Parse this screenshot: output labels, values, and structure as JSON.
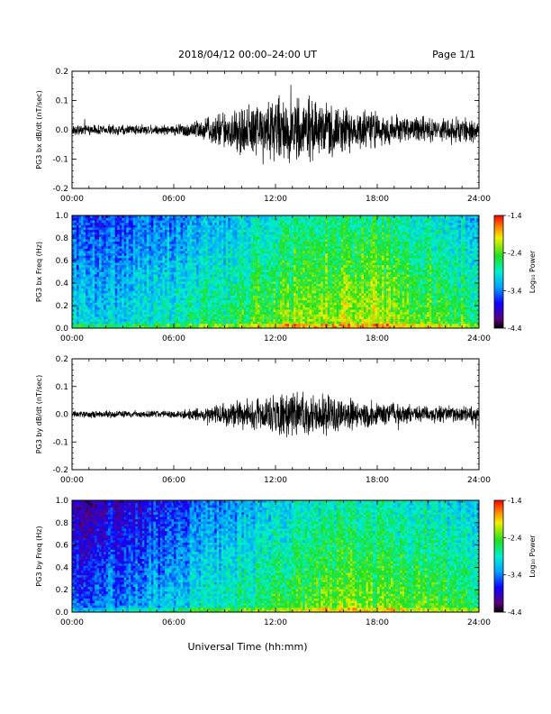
{
  "header": {
    "title": "2018/04/12   00:00–24:00 UT",
    "page": "Page 1/1"
  },
  "chart_data": [
    {
      "type": "line",
      "ylabel": "PG3 bx dB/dt (nT/sec)",
      "xlim": [
        0,
        24
      ],
      "ylim": [
        -0.2,
        0.2
      ],
      "xticks": [
        "00:00",
        "06:00",
        "12:00",
        "18:00",
        "24:00"
      ],
      "yticks": [
        "-0.2",
        "-0.1",
        "0.0",
        "0.1",
        "0.2"
      ],
      "amplitude_envelope": {
        "x_hours": [
          0,
          3,
          6,
          8,
          10,
          12,
          14,
          16,
          18,
          20,
          24
        ],
        "y_halfwidth": [
          0.02,
          0.02,
          0.02,
          0.05,
          0.1,
          0.13,
          0.12,
          0.09,
          0.07,
          0.05,
          0.045
        ]
      },
      "color": "#000000"
    },
    {
      "type": "heatmap",
      "ylabel": "PG3 bx Freq (Hz)",
      "xlim": [
        0,
        24
      ],
      "ylim": [
        0,
        1
      ],
      "xticks": [
        "00:00",
        "06:00",
        "12:00",
        "18:00",
        "24:00"
      ],
      "yticks": [
        "0.0",
        "0.2",
        "0.4",
        "0.6",
        "0.8",
        "1.0"
      ],
      "colorbar": {
        "label": "Log₁₀ Power",
        "min": -4.4,
        "max": -1.4,
        "ticks": [
          "-1.4",
          "-2.4",
          "-3.4",
          "-4.4"
        ]
      },
      "power_profile": {
        "x_hours": [
          0,
          3,
          6,
          9,
          12,
          15,
          18,
          21,
          24
        ],
        "log10_power_mid": [
          -3.3,
          -3.3,
          -3.1,
          -2.9,
          -2.6,
          -2.4,
          -2.4,
          -2.6,
          -2.9
        ]
      }
    },
    {
      "type": "line",
      "ylabel": "PG3 by dB/dt (nT/sec)",
      "xlim": [
        0,
        24
      ],
      "ylim": [
        -0.2,
        0.2
      ],
      "xticks": [
        "00:00",
        "06:00",
        "12:00",
        "18:00",
        "24:00"
      ],
      "yticks": [
        "-0.2",
        "-0.1",
        "0.0",
        "0.1",
        "0.2"
      ],
      "amplitude_envelope": {
        "x_hours": [
          0,
          3,
          6,
          8,
          10,
          12,
          14,
          16,
          18,
          20,
          24
        ],
        "y_halfwidth": [
          0.015,
          0.015,
          0.015,
          0.03,
          0.06,
          0.08,
          0.09,
          0.07,
          0.05,
          0.04,
          0.03
        ]
      },
      "color": "#000000"
    },
    {
      "type": "heatmap",
      "ylabel": "PG3 by Freq (Hz)",
      "xlim": [
        0,
        24
      ],
      "ylim": [
        0,
        1
      ],
      "xticks": [
        "00:00",
        "06:00",
        "12:00",
        "18:00",
        "24:00"
      ],
      "yticks": [
        "0.0",
        "0.2",
        "0.4",
        "0.6",
        "0.8",
        "1.0"
      ],
      "colorbar": {
        "label": "Log₁₀ Power",
        "min": -4.4,
        "max": -1.4,
        "ticks": [
          "-1.4",
          "-2.4",
          "-3.4",
          "-4.4"
        ]
      },
      "power_profile": {
        "x_hours": [
          0,
          3,
          6,
          9,
          12,
          15,
          18,
          21,
          24
        ],
        "log10_power_mid": [
          -3.7,
          -3.6,
          -3.4,
          -3.1,
          -2.8,
          -2.6,
          -2.6,
          -2.7,
          -2.9
        ]
      }
    }
  ],
  "xlabel": "Universal Time (hh:mm)"
}
